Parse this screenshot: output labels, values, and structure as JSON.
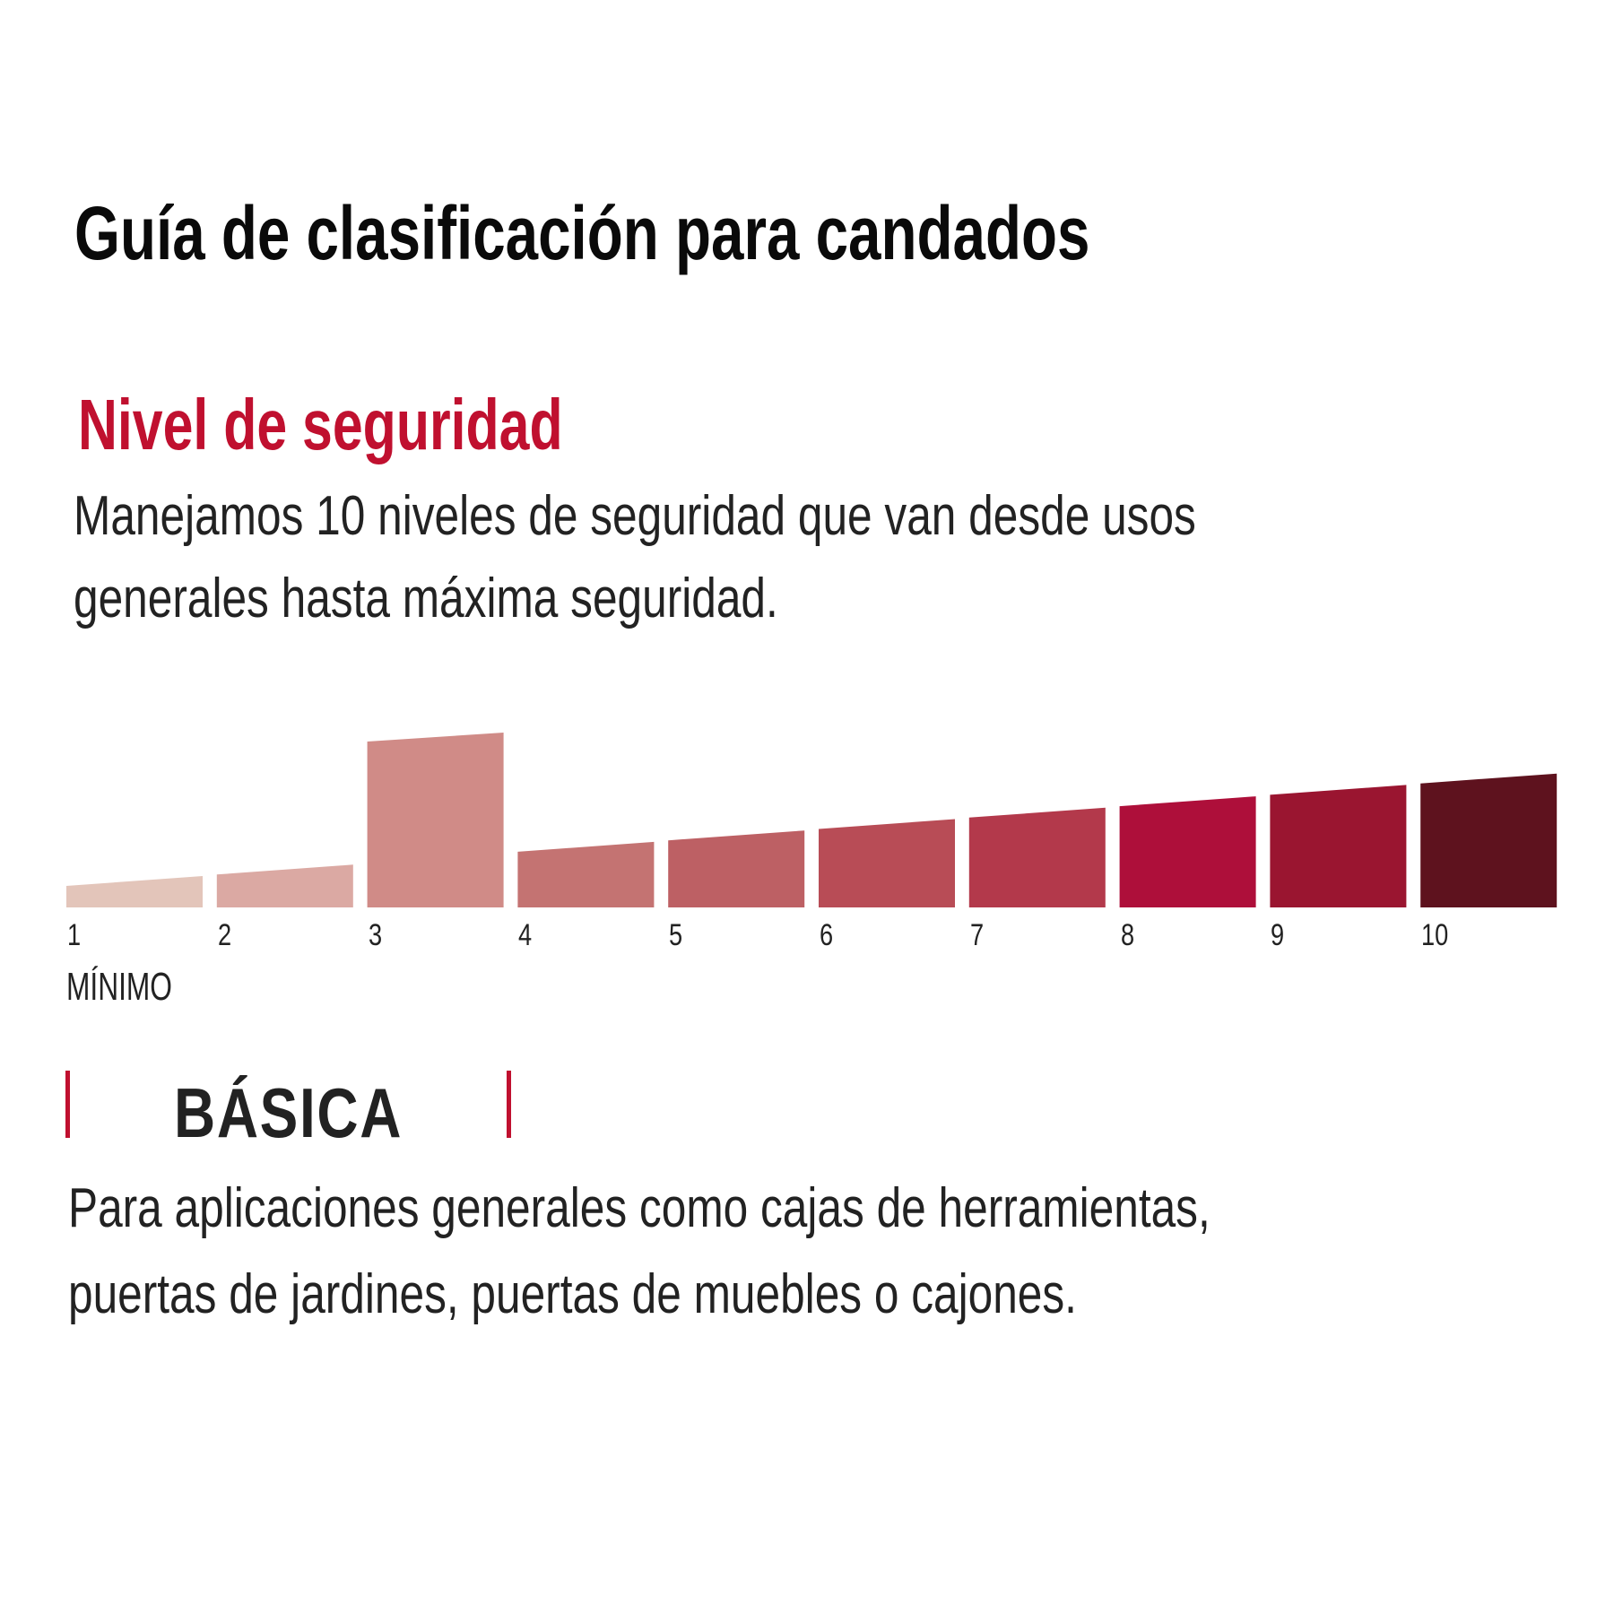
{
  "header": {
    "title": "Guía de clasificación para candados"
  },
  "section": {
    "subtitle": "Nivel de seguridad",
    "intro_lines": [
      "Manejamos 10 niveles de seguridad que van desde usos",
      "generales hasta máxima seguridad."
    ]
  },
  "chart_data": {
    "type": "bar",
    "categories": [
      "1",
      "2",
      "3",
      "4",
      "5",
      "6",
      "7",
      "8",
      "9",
      "10"
    ],
    "values": [
      1,
      2,
      3,
      4,
      5,
      6,
      7,
      8,
      9,
      10
    ],
    "selected": "3",
    "colors": [
      "#e3c5ba",
      "#dba9a3",
      "#d08b87",
      "#c47372",
      "#bd6064",
      "#b84c56",
      "#b3394b",
      "#ae0f3a",
      "#9a1530",
      "#5e121e"
    ],
    "min_label": "MÍNIMO"
  },
  "category": {
    "name": "BÁSICA",
    "description_lines": [
      "Para aplicaciones generales como cajas de herramientas,",
      "puertas de jardines, puertas de muebles o cajones."
    ],
    "accent": "#c0102f"
  }
}
